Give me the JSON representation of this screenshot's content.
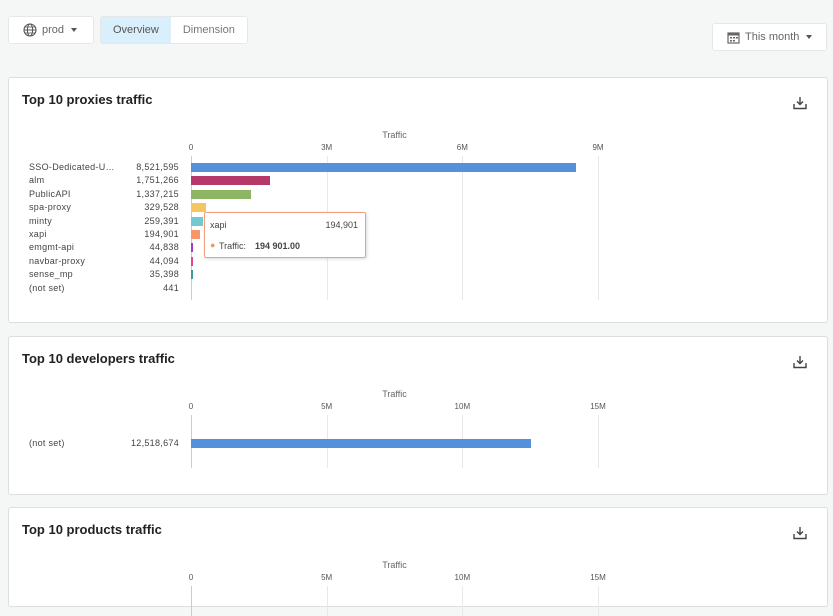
{
  "toolbar": {
    "env": "prod",
    "tabs": [
      "Overview",
      "Dimension"
    ],
    "active_tab": "Overview",
    "date_range": "This month"
  },
  "panels": [
    {
      "title": "Top 10 proxies traffic",
      "axis_title": "Traffic",
      "ticks": [
        "0",
        "3M",
        "6M",
        "9M"
      ],
      "max": 9000000,
      "rows": [
        {
          "label": "SSO-Dedicated-U…",
          "value": 8521595,
          "display": "8,521,595",
          "color": "#5591db"
        },
        {
          "label": "alm",
          "value": 1751266,
          "display": "1,751,266",
          "color": "#b5386b"
        },
        {
          "label": "PublicAPI",
          "value": 1337215,
          "display": "1,337,215",
          "color": "#8db563"
        },
        {
          "label": "spa-proxy",
          "value": 329528,
          "display": "329,528",
          "color": "#f7c55f"
        },
        {
          "label": "minty",
          "value": 259391,
          "display": "259,391",
          "color": "#72c9cf"
        },
        {
          "label": "xapi",
          "value": 194901,
          "display": "194,901",
          "color": "#f7966b"
        },
        {
          "label": "emgmt-api",
          "value": 44838,
          "display": "44,838",
          "color": "#a23bc9"
        },
        {
          "label": "navbar-proxy",
          "value": 44094,
          "display": "44,094",
          "color": "#e4468e"
        },
        {
          "label": "sense_mp",
          "value": 35398,
          "display": "35,398",
          "color": "#3a9e96"
        },
        {
          "label": "(not set)",
          "value": 441,
          "display": "441",
          "color": "#888888"
        }
      ],
      "tooltip": {
        "name": "xapi",
        "value": "194,901",
        "series": "Traffic:",
        "series_value": "194 901.00",
        "color": "#f7966b"
      }
    },
    {
      "title": "Top 10 developers traffic",
      "axis_title": "Traffic",
      "ticks": [
        "0",
        "5M",
        "10M",
        "15M"
      ],
      "max": 15000000,
      "rows": [
        {
          "label": "(not set)",
          "value": 12518674,
          "display": "12,518,674",
          "color": "#5591db"
        }
      ]
    },
    {
      "title": "Top 10 products traffic",
      "axis_title": "Traffic",
      "ticks": [
        "0",
        "5M",
        "10M",
        "15M"
      ],
      "max": 15000000,
      "rows": []
    }
  ]
}
